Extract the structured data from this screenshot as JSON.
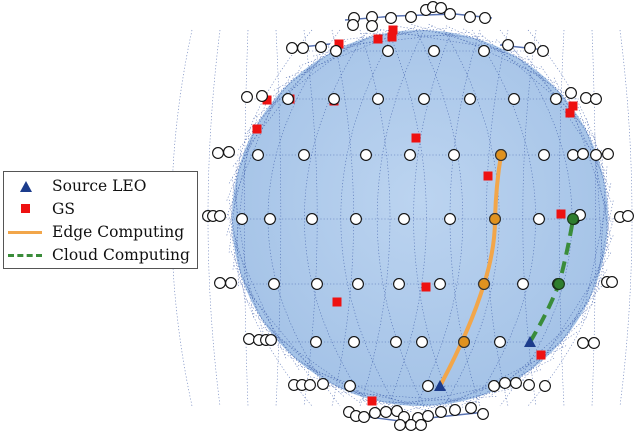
{
  "legend": {
    "source_leo": "Source LEO",
    "gs": "GS",
    "edge": "Edge Computing",
    "cloud": "Cloud Computing"
  },
  "colors": {
    "sphere": "#a9c7ea",
    "mesh": "#2f4fa0",
    "satellite_fill": "#ffffff",
    "gs": "#ee1111",
    "source_leo": "#1c3c8c",
    "edge_path": "#f2a64a",
    "edge_node": "#e0921f",
    "cloud_path": "#3a8c3a",
    "cloud_node": "#2e7d2e"
  },
  "icons": {
    "source_leo": "blue-triangle",
    "gs": "red-square",
    "satellite": "white-circle"
  }
}
